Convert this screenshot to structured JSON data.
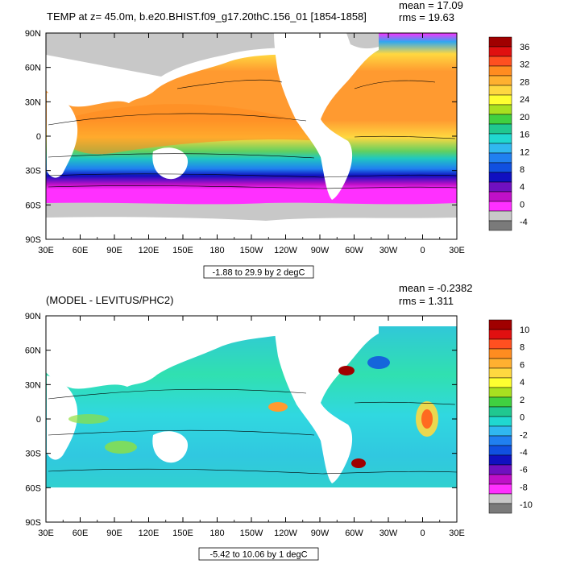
{
  "chart_data": [
    {
      "type": "heatmap",
      "title": "TEMP at z=  45.0m, b.e20.BHIST.f09_g17.20thC.156_01 [1854-1858]",
      "stats": {
        "mean": "mean = 17.09",
        "rms": "rms = 19.63"
      },
      "range_label": "-1.88 to 29.9 by 2 degC",
      "x_ticks": [
        "30E",
        "60E",
        "90E",
        "120E",
        "150E",
        "180",
        "150W",
        "120W",
        "90W",
        "60W",
        "30W",
        "0",
        "30E"
      ],
      "y_ticks": [
        "90N",
        "60N",
        "30N",
        "0",
        "30S",
        "60S",
        "90S"
      ],
      "xlim_deg": [
        30,
        390
      ],
      "ylim_deg": [
        -90,
        90
      ],
      "colorbar": {
        "labels": [
          "36",
          "32",
          "28",
          "24",
          "20",
          "16",
          "12",
          "8",
          "4",
          "0",
          "-4"
        ],
        "colors": [
          "#a00000",
          "#e01010",
          "#ff5020",
          "#ff8c20",
          "#ffb030",
          "#ffd840",
          "#ffff30",
          "#a8e020",
          "#40d040",
          "#20c890",
          "#20d8d0",
          "#30b8f0",
          "#2080f0",
          "#1050e0",
          "#1010c0",
          "#7010c0",
          "#c010c8",
          "#ff30ff",
          "#c8c8c8",
          "#7a7a7a"
        ]
      }
    },
    {
      "type": "heatmap",
      "title": "(MODEL - LEVITUS/PHC2)",
      "stats": {
        "mean": "mean = -0.2382",
        "rms": "rms = 1.311"
      },
      "range_label": "-5.42 to 10.06 by 1 degC",
      "x_ticks": [
        "30E",
        "60E",
        "90E",
        "120E",
        "150E",
        "180",
        "150W",
        "120W",
        "90W",
        "60W",
        "30W",
        "0",
        "30E"
      ],
      "y_ticks": [
        "90N",
        "60N",
        "30N",
        "0",
        "30S",
        "60S",
        "90S"
      ],
      "xlim_deg": [
        30,
        390
      ],
      "ylim_deg": [
        -90,
        90
      ],
      "colorbar": {
        "labels": [
          "10",
          "8",
          "6",
          "4",
          "2",
          "0",
          "-2",
          "-4",
          "-6",
          "-8",
          "-10"
        ],
        "colors": [
          "#a00000",
          "#e01010",
          "#ff5020",
          "#ff8c20",
          "#ffb030",
          "#ffd840",
          "#ffff30",
          "#a8e020",
          "#40d040",
          "#20c890",
          "#20d8d0",
          "#30b8f0",
          "#2080f0",
          "#1050e0",
          "#1010c0",
          "#7010c0",
          "#c010c8",
          "#ff30ff",
          "#c8c8c8",
          "#7a7a7a"
        ]
      }
    }
  ]
}
